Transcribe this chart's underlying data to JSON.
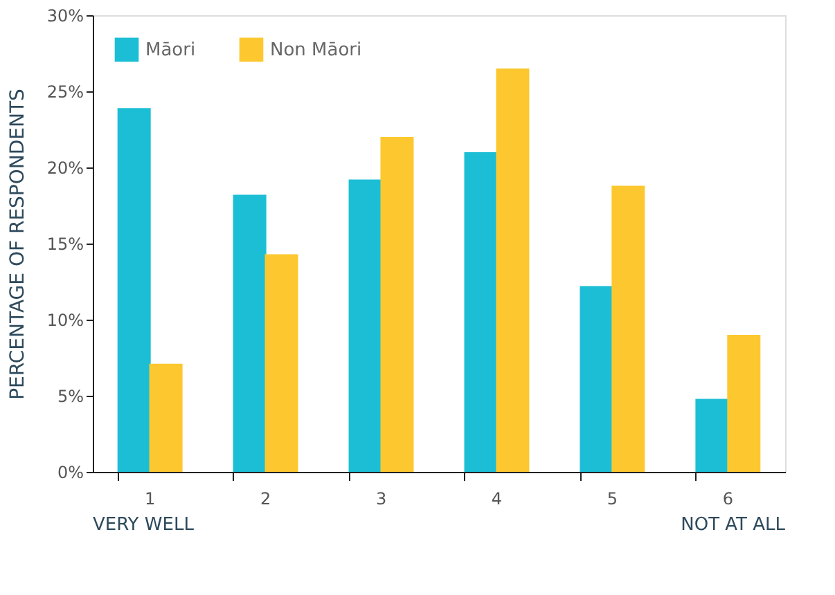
{
  "chart_data": {
    "type": "bar",
    "ylabel": "PERCENTAGE OF RESPONDENTS",
    "categories": [
      "1",
      "2",
      "3",
      "4",
      "5",
      "6"
    ],
    "series": [
      {
        "name": "Māori",
        "color": "#1bbed5",
        "values": [
          23.9,
          18.2,
          19.2,
          21.0,
          12.2,
          4.8
        ]
      },
      {
        "name": "Non Māori",
        "color": "#fdc82f",
        "values": [
          7.1,
          14.3,
          22.0,
          26.5,
          18.8,
          9.0
        ]
      }
    ],
    "ylim": [
      0,
      30
    ],
    "yticks": [
      {
        "value": 0,
        "label": "0%"
      },
      {
        "value": 5,
        "label": "5%"
      },
      {
        "value": 10,
        "label": "10%"
      },
      {
        "value": 15,
        "label": "15%"
      },
      {
        "value": 20,
        "label": "20%"
      },
      {
        "value": 25,
        "label": "25%"
      },
      {
        "value": 30,
        "label": "30%"
      }
    ],
    "annotations": [
      "VERY WELL",
      "NOT AT ALL"
    ],
    "legend": "top left",
    "grid": false
  }
}
